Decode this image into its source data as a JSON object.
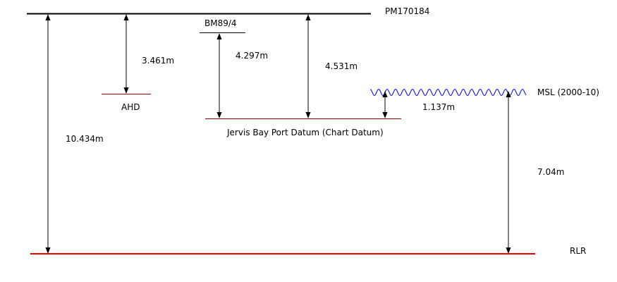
{
  "datums": {
    "pm170184": "PM170184",
    "bm89_4": "BM89/4",
    "ahd": "AHD",
    "chart_datum": "Jervis Bay Port Datum (Chart Datum)",
    "msl": "MSL (2000-10)",
    "rlr": "RLR"
  },
  "measurements": {
    "pm_to_ahd": "3.461m",
    "bm_to_chart_datum": "4.297m",
    "pm_to_chart_datum": "4.531m",
    "msl_to_chart_datum": "1.137m",
    "pm_to_rlr": "10.434m",
    "msl_to_rlr": "7.04m"
  },
  "colors": {
    "benchmark_line": "#000000",
    "datum_line": "#8b0000",
    "rlr_line": "#ee0000",
    "msl_wave": "#0000ff",
    "arrow": "#000000"
  }
}
